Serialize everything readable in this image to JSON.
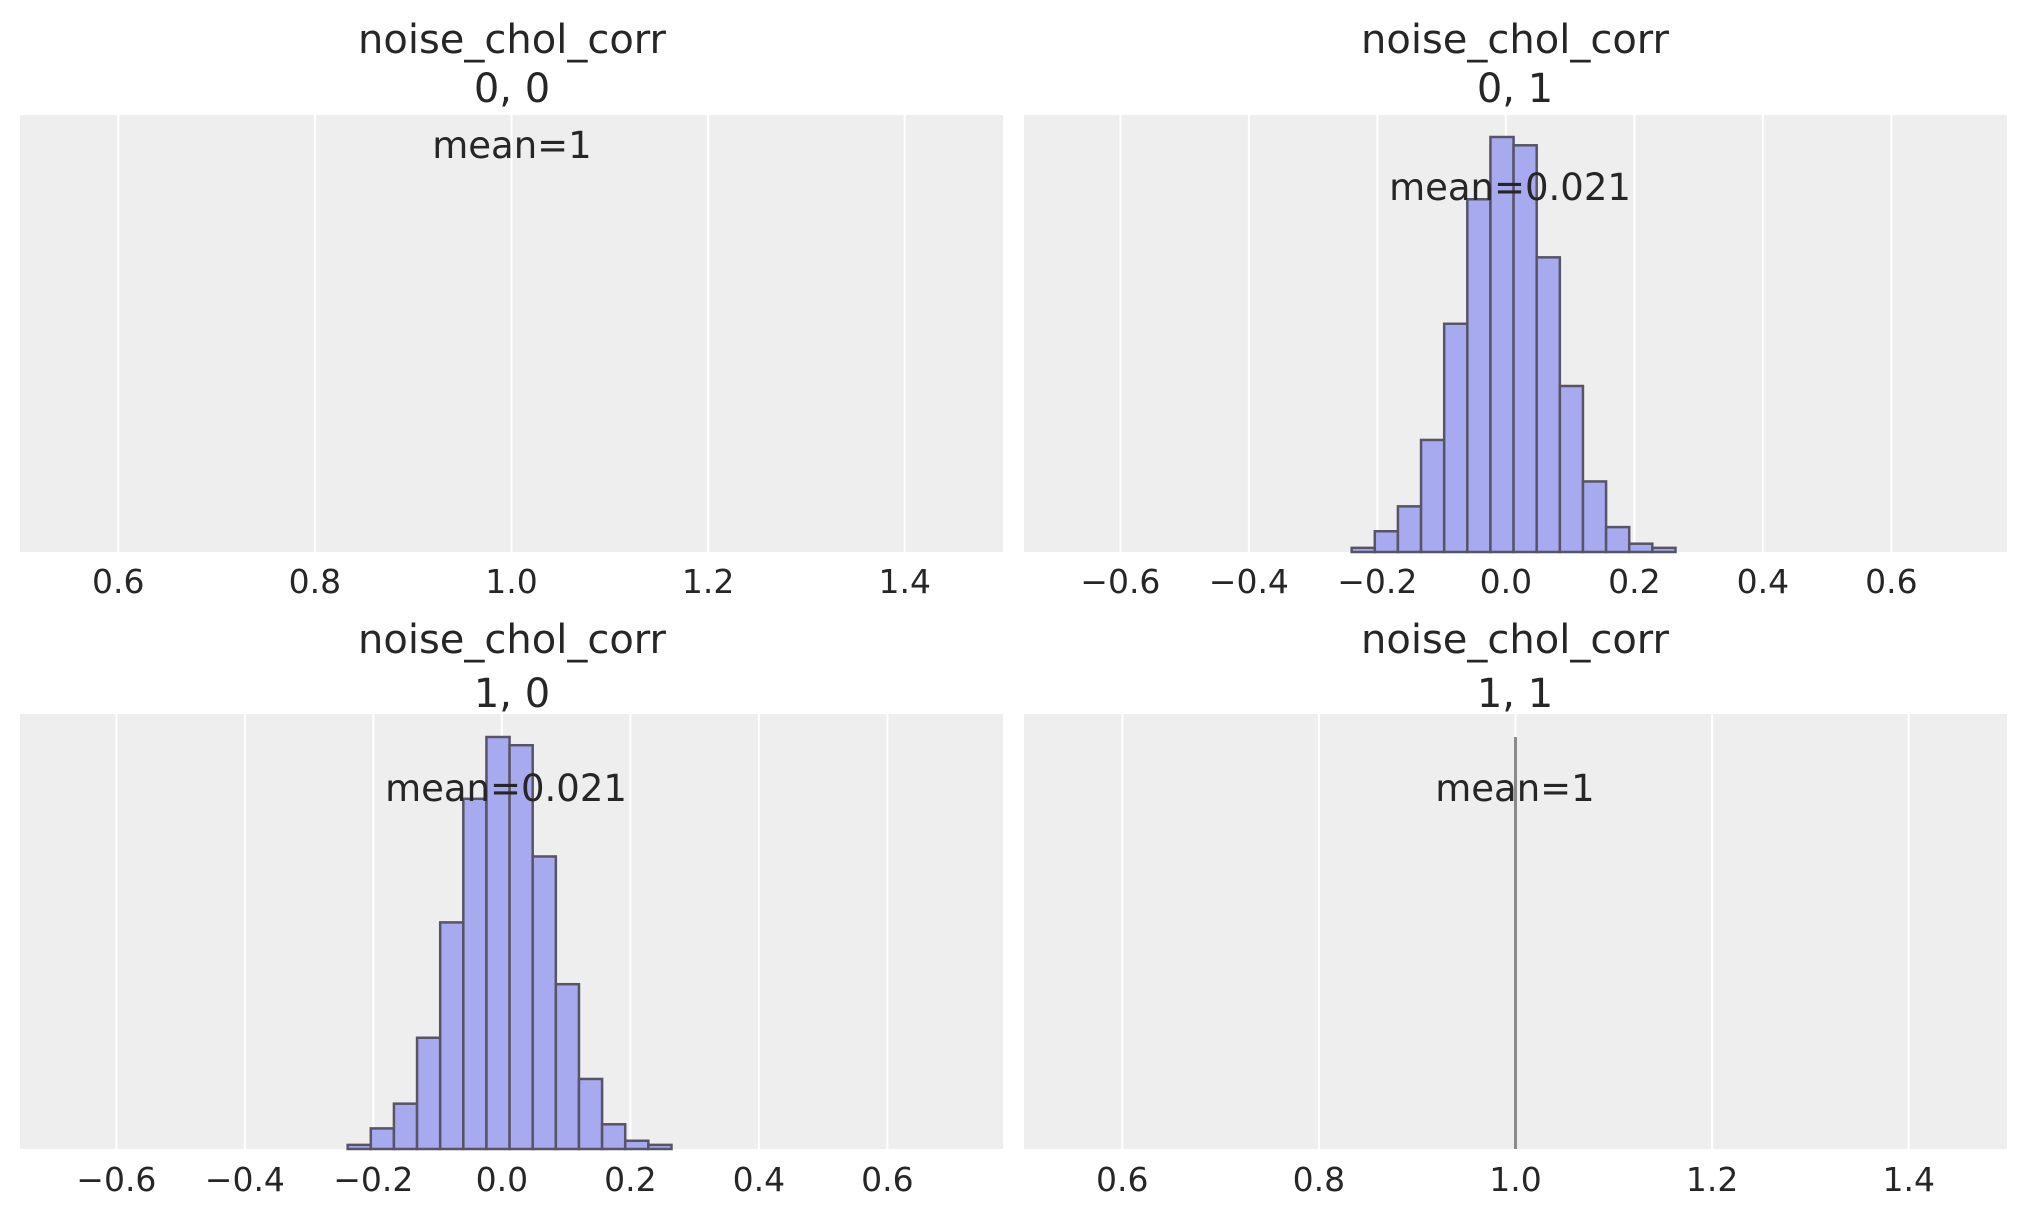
{
  "chart_data": [
    {
      "type": "bar",
      "title": "noise_chol_corr",
      "subtitle": "0, 0",
      "annotation": "mean=1",
      "xlim": [
        0.5,
        1.5
      ],
      "xticks": [
        0.6,
        0.8,
        1.0,
        1.2,
        1.4
      ],
      "xtick_labels": [
        "0.6",
        "0.8",
        "1.0",
        "1.2",
        "1.4"
      ],
      "grid": true,
      "vline": null,
      "bins": []
    },
    {
      "type": "bar",
      "title": "noise_chol_corr",
      "subtitle": "0, 1",
      "annotation": "mean=0.021",
      "xlim": [
        -0.75,
        0.78
      ],
      "xticks": [
        -0.6,
        -0.4,
        -0.2,
        0.0,
        0.2,
        0.4,
        0.6
      ],
      "xtick_labels": [
        "−0.6",
        "−0.4",
        "−0.2",
        "0.0",
        "0.2",
        "0.4",
        "0.6"
      ],
      "grid": true,
      "vline": null,
      "bins": [
        {
          "x0": -0.24,
          "x1": -0.204,
          "count": 1
        },
        {
          "x0": -0.204,
          "x1": -0.168,
          "count": 5
        },
        {
          "x0": -0.168,
          "x1": -0.132,
          "count": 11
        },
        {
          "x0": -0.132,
          "x1": -0.096,
          "count": 27
        },
        {
          "x0": -0.096,
          "x1": -0.06,
          "count": 55
        },
        {
          "x0": -0.06,
          "x1": -0.024,
          "count": 85
        },
        {
          "x0": -0.024,
          "x1": 0.012,
          "count": 100
        },
        {
          "x0": 0.012,
          "x1": 0.048,
          "count": 98
        },
        {
          "x0": 0.048,
          "x1": 0.084,
          "count": 71
        },
        {
          "x0": 0.084,
          "x1": 0.12,
          "count": 40
        },
        {
          "x0": 0.12,
          "x1": 0.156,
          "count": 17
        },
        {
          "x0": 0.156,
          "x1": 0.192,
          "count": 6
        },
        {
          "x0": 0.192,
          "x1": 0.228,
          "count": 2
        },
        {
          "x0": 0.228,
          "x1": 0.264,
          "count": 1
        }
      ]
    },
    {
      "type": "bar",
      "title": "noise_chol_corr",
      "subtitle": "1, 0",
      "annotation": "mean=0.021",
      "xlim": [
        -0.75,
        0.78
      ],
      "xticks": [
        -0.6,
        -0.4,
        -0.2,
        0.0,
        0.2,
        0.4,
        0.6
      ],
      "xtick_labels": [
        "−0.6",
        "−0.4",
        "−0.2",
        "0.0",
        "0.2",
        "0.4",
        "0.6"
      ],
      "grid": true,
      "vline": null,
      "bins": [
        {
          "x0": -0.24,
          "x1": -0.204,
          "count": 1
        },
        {
          "x0": -0.204,
          "x1": -0.168,
          "count": 5
        },
        {
          "x0": -0.168,
          "x1": -0.132,
          "count": 11
        },
        {
          "x0": -0.132,
          "x1": -0.096,
          "count": 27
        },
        {
          "x0": -0.096,
          "x1": -0.06,
          "count": 55
        },
        {
          "x0": -0.06,
          "x1": -0.024,
          "count": 85
        },
        {
          "x0": -0.024,
          "x1": 0.012,
          "count": 100
        },
        {
          "x0": 0.012,
          "x1": 0.048,
          "count": 98
        },
        {
          "x0": 0.048,
          "x1": 0.084,
          "count": 71
        },
        {
          "x0": 0.084,
          "x1": 0.12,
          "count": 40
        },
        {
          "x0": 0.12,
          "x1": 0.156,
          "count": 17
        },
        {
          "x0": 0.156,
          "x1": 0.192,
          "count": 6
        },
        {
          "x0": 0.192,
          "x1": 0.228,
          "count": 2
        },
        {
          "x0": 0.228,
          "x1": 0.264,
          "count": 1
        }
      ]
    },
    {
      "type": "bar",
      "title": "noise_chol_corr",
      "subtitle": "1, 1",
      "annotation": "mean=1",
      "xlim": [
        0.5,
        1.5
      ],
      "xticks": [
        0.6,
        0.8,
        1.0,
        1.2,
        1.4
      ],
      "xtick_labels": [
        "0.6",
        "0.8",
        "1.0",
        "1.2",
        "1.4"
      ],
      "grid": true,
      "vline": 1.0,
      "bins": []
    }
  ]
}
